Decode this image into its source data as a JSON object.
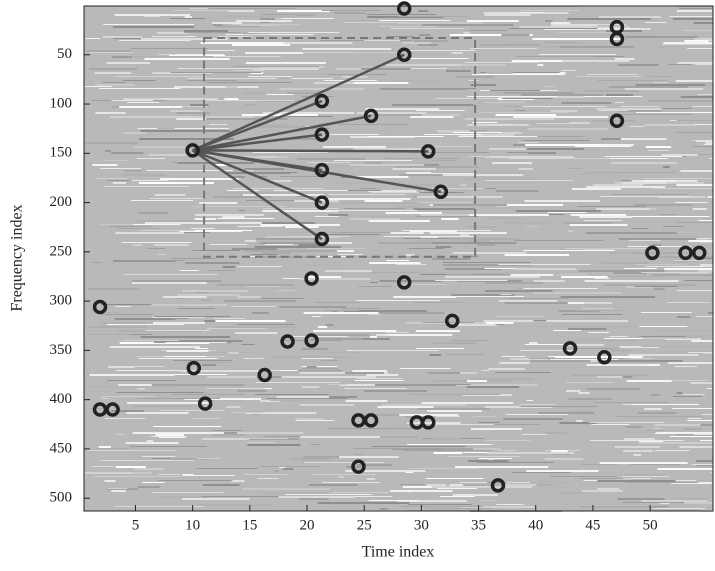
{
  "chart_data": {
    "type": "scatter",
    "x_label": "Time index",
    "y_label": "Frequency index",
    "xlim": [
      0.5,
      55.5
    ],
    "xticks": [
      5,
      10,
      15,
      20,
      25,
      30,
      35,
      40,
      45,
      50
    ],
    "ylim": [
      0.5,
      513
    ],
    "yticks": [
      50,
      100,
      150,
      200,
      250,
      300,
      350,
      400,
      450,
      500
    ],
    "y_reversed": true,
    "color": "#222222",
    "link_color": "#555555",
    "x": [
      28.5,
      28.5,
      47.1,
      47.1,
      47.1,
      10,
      21.3,
      25.6,
      21.3,
      30.6,
      21.3,
      31.7,
      21.3,
      21.3,
      50.2,
      53.1,
      54.3,
      1.9,
      28.5,
      20.4,
      32.7,
      18.3,
      20.4,
      10.1,
      16.3,
      43,
      46,
      1.9,
      3,
      11.1,
      24.5,
      25.6,
      29.6,
      30.6,
      24.5,
      36.7
    ],
    "y": [
      3,
      50,
      22,
      34,
      117,
      147,
      97,
      112,
      131,
      148,
      167,
      189,
      200,
      237,
      251,
      251,
      251,
      306,
      281,
      277,
      320,
      341,
      340,
      368,
      375,
      348,
      357,
      410,
      410,
      404,
      421,
      421,
      423,
      423,
      468,
      487
    ],
    "anchor_index": 5,
    "paired_indices": [
      1,
      6,
      7,
      8,
      9,
      10,
      11,
      12,
      13
    ],
    "target_zone": {
      "x": [
        11,
        34.7
      ],
      "y": [
        33,
        255
      ]
    }
  }
}
